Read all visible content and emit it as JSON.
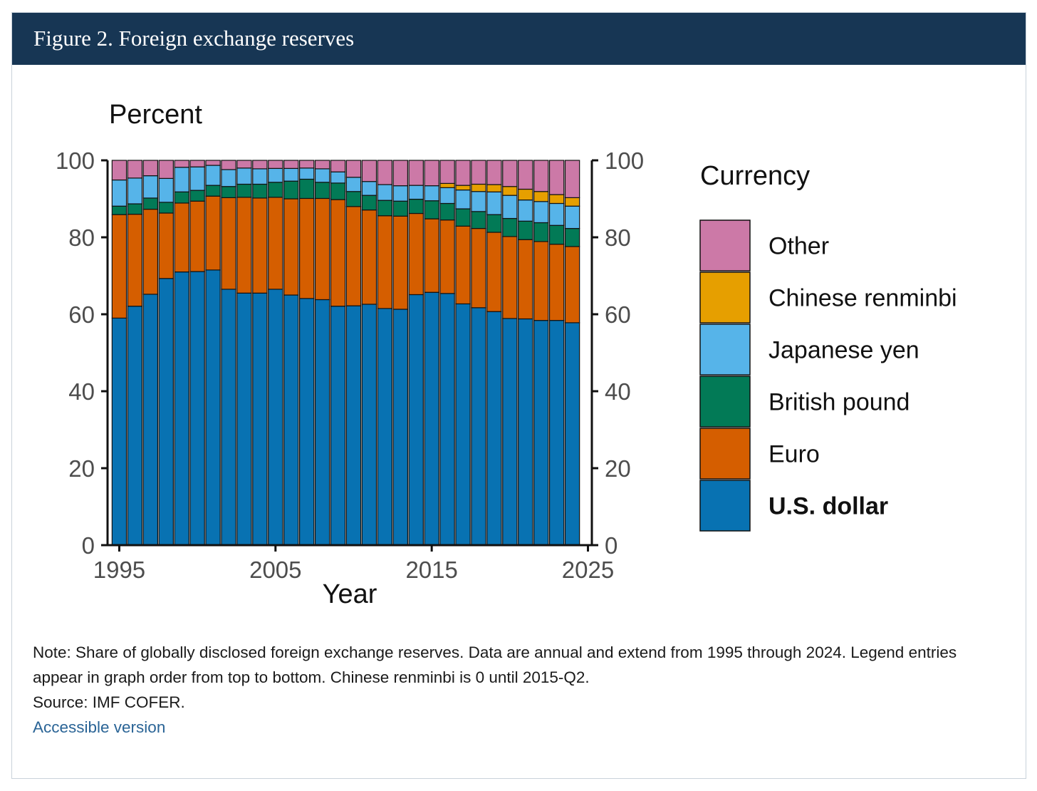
{
  "header": {
    "title": "Figure 2. Foreign exchange reserves"
  },
  "chart_data": {
    "type": "bar",
    "stacked": true,
    "ylabel": "Percent",
    "xlabel": "Year",
    "ylim": [
      0,
      100
    ],
    "yticks": [
      "0",
      "20",
      "40",
      "60",
      "80",
      "100"
    ],
    "xticks": [
      "1995",
      "2005",
      "2015",
      "2025"
    ],
    "xlim": [
      1994.25,
      2025.25
    ],
    "legend_title": "Currency",
    "legend_position": "right",
    "categories": [
      1995,
      1996,
      1997,
      1998,
      1999,
      2000,
      2001,
      2002,
      2003,
      2004,
      2005,
      2006,
      2007,
      2008,
      2009,
      2010,
      2011,
      2012,
      2013,
      2014,
      2015,
      2016,
      2017,
      2018,
      2019,
      2020,
      2021,
      2022,
      2023,
      2024
    ],
    "series": [
      {
        "name": "U.S. dollar",
        "color": "#0872b2",
        "bold": true,
        "values": [
          59.0,
          62.1,
          65.2,
          69.3,
          71.0,
          71.1,
          71.5,
          66.5,
          65.5,
          65.5,
          66.5,
          65.0,
          64.1,
          63.8,
          62.1,
          62.2,
          62.6,
          61.5,
          61.3,
          65.1,
          65.7,
          65.4,
          62.7,
          61.7,
          60.7,
          58.9,
          58.8,
          58.4,
          58.4,
          57.8
        ]
      },
      {
        "name": "Euro",
        "color": "#d55e00",
        "bold": false,
        "values": [
          26.9,
          23.9,
          22.1,
          17.0,
          17.9,
          18.3,
          19.2,
          23.8,
          24.9,
          24.7,
          23.9,
          25.0,
          26.0,
          26.3,
          27.7,
          25.8,
          24.5,
          24.1,
          24.2,
          21.1,
          19.1,
          19.1,
          20.2,
          20.6,
          20.6,
          21.3,
          20.6,
          20.5,
          19.8,
          19.8
        ]
      },
      {
        "name": "British pound",
        "color": "#027a56",
        "bold": false,
        "values": [
          2.2,
          2.7,
          2.9,
          2.8,
          2.9,
          2.8,
          2.8,
          2.9,
          3.4,
          3.6,
          3.9,
          4.6,
          5.0,
          4.2,
          4.3,
          3.9,
          3.8,
          4.0,
          3.9,
          3.7,
          4.7,
          4.3,
          4.5,
          4.4,
          4.6,
          4.7,
          4.8,
          4.9,
          4.9,
          4.7
        ]
      },
      {
        "name": "Japanese yen",
        "color": "#56b4e9",
        "bold": false,
        "values": [
          6.8,
          6.7,
          5.8,
          6.2,
          6.4,
          6.1,
          5.2,
          4.4,
          4.2,
          4.0,
          3.6,
          3.3,
          2.9,
          3.5,
          2.9,
          3.7,
          3.6,
          4.1,
          4.0,
          3.6,
          3.9,
          4.1,
          4.9,
          5.2,
          5.9,
          6.0,
          5.5,
          5.5,
          5.7,
          5.8
        ]
      },
      {
        "name": "Chinese renminbi",
        "color": "#e69f00",
        "bold": false,
        "values": [
          0,
          0,
          0,
          0,
          0,
          0,
          0,
          0,
          0,
          0,
          0,
          0,
          0,
          0,
          0,
          0,
          0,
          0,
          0,
          0,
          0,
          1.1,
          1.2,
          1.9,
          1.9,
          2.3,
          2.8,
          2.6,
          2.3,
          2.2
        ]
      },
      {
        "name": "Other",
        "color": "#cc79a7",
        "bold": false,
        "values": [
          5.1,
          4.6,
          4.0,
          4.7,
          1.8,
          1.7,
          1.3,
          2.4,
          2.0,
          2.2,
          2.1,
          2.1,
          2.0,
          2.2,
          3.0,
          4.4,
          5.5,
          6.3,
          6.6,
          6.5,
          6.6,
          6.0,
          6.5,
          6.2,
          6.3,
          6.8,
          7.5,
          8.1,
          8.9,
          9.7
        ]
      }
    ]
  },
  "note": {
    "text": "Note: Share of globally disclosed foreign exchange reserves. Data are annual and extend from 1995 through 2024. Legend entries appear in graph order from top to bottom. Chinese renminbi is 0 until 2015-Q2.",
    "source": "Source: IMF COFER.",
    "link_label": "Accessible version"
  }
}
